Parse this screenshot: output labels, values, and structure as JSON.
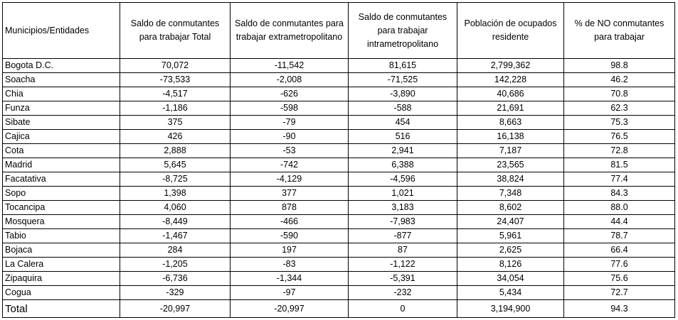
{
  "columns": [
    "Municipios/Entidades",
    "Saldo de conmutantes para trabajar Total",
    "Saldo de conmutantes para trabajar extrametropolitano",
    "Saldo de conmutantes para trabajar intrametropolitano",
    "Población de ocupados residente",
    "% de NO conmutantes para trabajar"
  ],
  "rows": [
    [
      "Bogota D.C.",
      "70,072",
      "-11,542",
      "81,615",
      "2,799,362",
      "98.8"
    ],
    [
      "Soacha",
      "-73,533",
      "-2,008",
      "-71,525",
      "142,228",
      "46.2"
    ],
    [
      "Chia",
      "-4,517",
      "-626",
      "-3,890",
      "40,686",
      "70.8"
    ],
    [
      "Funza",
      "-1,186",
      "-598",
      "-588",
      "21,691",
      "62.3"
    ],
    [
      "Sibate",
      "375",
      "-79",
      "454",
      "8,663",
      "75.3"
    ],
    [
      "Cajica",
      "426",
      "-90",
      "516",
      "16,138",
      "76.5"
    ],
    [
      "Cota",
      "2,888",
      "-53",
      "2,941",
      "7,187",
      "72.8"
    ],
    [
      "Madrid",
      "5,645",
      "-742",
      "6,388",
      "23,565",
      "81.5"
    ],
    [
      "Facatativa",
      "-8,725",
      "-4,129",
      "-4,596",
      "38,824",
      "77.4"
    ],
    [
      "Sopo",
      "1,398",
      "377",
      "1,021",
      "7,348",
      "84.3"
    ],
    [
      "Tocancipa",
      "4,060",
      "878",
      "3,183",
      "8,602",
      "88.0"
    ],
    [
      "Mosquera",
      "-8,449",
      "-466",
      "-7,983",
      "24,407",
      "44.4"
    ],
    [
      "Tabio",
      "-1,467",
      "-590",
      "-877",
      "5,961",
      "78.7"
    ],
    [
      "Bojaca",
      "284",
      "197",
      "87",
      "2,625",
      "66.4"
    ],
    [
      "La Calera",
      "-1,205",
      "-83",
      "-1,122",
      "8,126",
      "77.6"
    ],
    [
      "Zipaquira",
      "-6,736",
      "-1,344",
      "-5,391",
      "34,054",
      "75.6"
    ],
    [
      "Cogua",
      "-329",
      "-97",
      "-232",
      "5,434",
      "72.7"
    ]
  ],
  "total": [
    "Total",
    "-20,997",
    "-20,997",
    "0",
    "3,194,900",
    "94.3"
  ]
}
